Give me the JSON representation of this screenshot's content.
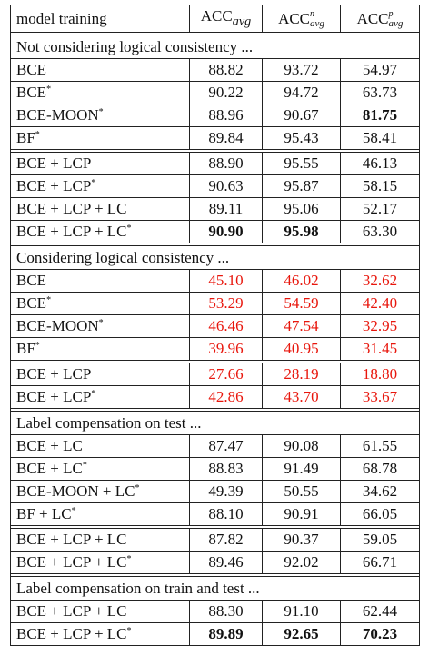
{
  "header": {
    "model_training": "model training",
    "acc_avg": {
      "base": "ACC",
      "sup": "",
      "sub": "avg"
    },
    "acc_n_avg": {
      "base": "ACC",
      "sup": "n",
      "sub": "avg"
    },
    "acc_p_avg": {
      "base": "ACC",
      "sup": "p",
      "sub": "avg"
    }
  },
  "sections": [
    {
      "title": "Not considering logical consistency ...",
      "groups": [
        [
          {
            "model": "BCE",
            "star": false,
            "values": [
              "88.82",
              "93.72",
              "54.97"
            ],
            "bold": [
              false,
              false,
              false
            ],
            "red": false
          },
          {
            "model": "BCE",
            "star": true,
            "values": [
              "90.22",
              "94.72",
              "63.73"
            ],
            "bold": [
              false,
              false,
              false
            ],
            "red": false
          },
          {
            "model": "BCE-MOON",
            "star": true,
            "values": [
              "88.96",
              "90.67",
              "81.75"
            ],
            "bold": [
              false,
              false,
              true
            ],
            "red": false
          },
          {
            "model": "BF",
            "star": true,
            "values": [
              "89.84",
              "95.43",
              "58.41"
            ],
            "bold": [
              false,
              false,
              false
            ],
            "red": false
          }
        ],
        [
          {
            "model": "BCE + LCP",
            "star": false,
            "values": [
              "88.90",
              "95.55",
              "46.13"
            ],
            "bold": [
              false,
              false,
              false
            ],
            "red": false
          },
          {
            "model": "BCE + LCP",
            "star": true,
            "values": [
              "90.63",
              "95.87",
              "58.15"
            ],
            "bold": [
              false,
              false,
              false
            ],
            "red": false
          },
          {
            "model": "BCE + LCP + LC",
            "star": false,
            "values": [
              "89.11",
              "95.06",
              "52.17"
            ],
            "bold": [
              false,
              false,
              false
            ],
            "red": false
          },
          {
            "model": "BCE + LCP + LC",
            "star": true,
            "values": [
              "90.90",
              "95.98",
              "63.30"
            ],
            "bold": [
              true,
              true,
              false
            ],
            "red": false
          }
        ]
      ]
    },
    {
      "title": "Considering logical consistency ...",
      "groups": [
        [
          {
            "model": "BCE",
            "star": false,
            "values": [
              "45.10",
              "46.02",
              "32.62"
            ],
            "bold": [
              false,
              false,
              false
            ],
            "red": true
          },
          {
            "model": "BCE",
            "star": true,
            "values": [
              "53.29",
              "54.59",
              "42.40"
            ],
            "bold": [
              false,
              false,
              false
            ],
            "red": true
          },
          {
            "model": "BCE-MOON",
            "star": true,
            "values": [
              "46.46",
              "47.54",
              "32.95"
            ],
            "bold": [
              false,
              false,
              false
            ],
            "red": true
          },
          {
            "model": "BF",
            "star": true,
            "values": [
              "39.96",
              "40.95",
              "31.45"
            ],
            "bold": [
              false,
              false,
              false
            ],
            "red": true
          }
        ],
        [
          {
            "model": "BCE + LCP",
            "star": false,
            "values": [
              "27.66",
              "28.19",
              "18.80"
            ],
            "bold": [
              false,
              false,
              false
            ],
            "red": true
          },
          {
            "model": "BCE + LCP",
            "star": true,
            "values": [
              "42.86",
              "43.70",
              "33.67"
            ],
            "bold": [
              false,
              false,
              false
            ],
            "red": true
          }
        ]
      ]
    },
    {
      "title": "Label compensation on test ...",
      "groups": [
        [
          {
            "model": "BCE + LC",
            "star": false,
            "values": [
              "87.47",
              "90.08",
              "61.55"
            ],
            "bold": [
              false,
              false,
              false
            ],
            "red": false
          },
          {
            "model": "BCE + LC",
            "star": true,
            "values": [
              "88.83",
              "91.49",
              "68.78"
            ],
            "bold": [
              false,
              false,
              false
            ],
            "red": false
          },
          {
            "model": "BCE-MOON + LC",
            "star": true,
            "values": [
              "49.39",
              "50.55",
              "34.62"
            ],
            "bold": [
              false,
              false,
              false
            ],
            "red": false
          },
          {
            "model": "BF + LC",
            "star": true,
            "values": [
              "88.10",
              "90.91",
              "66.05"
            ],
            "bold": [
              false,
              false,
              false
            ],
            "red": false
          }
        ],
        [
          {
            "model": "BCE + LCP + LC",
            "star": false,
            "values": [
              "87.82",
              "90.37",
              "59.05"
            ],
            "bold": [
              false,
              false,
              false
            ],
            "red": false
          },
          {
            "model": "BCE + LCP + LC",
            "star": true,
            "values": [
              "89.46",
              "92.02",
              "66.71"
            ],
            "bold": [
              false,
              false,
              false
            ],
            "red": false
          }
        ]
      ]
    },
    {
      "title": "Label compensation on train and test ...",
      "groups": [
        [
          {
            "model": "BCE + LCP + LC",
            "star": false,
            "values": [
              "88.30",
              "91.10",
              "62.44"
            ],
            "bold": [
              false,
              false,
              false
            ],
            "red": false
          },
          {
            "model": "BCE + LCP + LC",
            "star": true,
            "values": [
              "89.89",
              "92.65",
              "70.23"
            ],
            "bold": [
              true,
              true,
              true
            ],
            "red": false
          }
        ]
      ]
    }
  ],
  "star_symbol": "*",
  "colors": {
    "highlight_red": "#e8160c",
    "text": "#111111",
    "rule": "#222222"
  }
}
